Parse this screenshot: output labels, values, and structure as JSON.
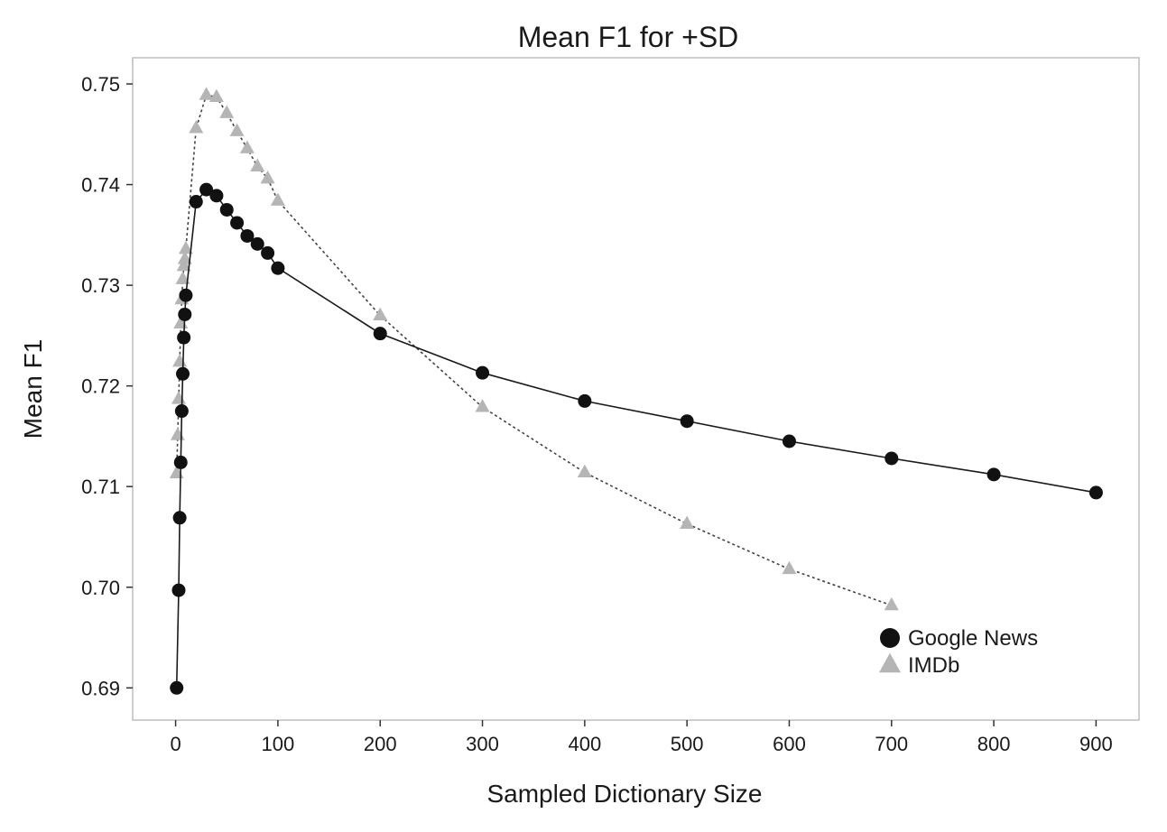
{
  "chart_data": {
    "type": "line",
    "title": "Mean F1 for +SD",
    "xlabel": "Sampled Dictionary Size",
    "ylabel": "Mean F1",
    "xlim": [
      -42,
      942
    ],
    "ylim": [
      0.6868,
      0.7526
    ],
    "x_ticks": [
      0,
      100,
      200,
      300,
      400,
      500,
      600,
      700,
      800,
      900
    ],
    "x_tick_labels": [
      "0",
      "100",
      "200",
      "300",
      "400",
      "500",
      "600",
      "700",
      "800",
      "900"
    ],
    "y_ticks": [
      0.69,
      0.7,
      0.71,
      0.72,
      0.73,
      0.74,
      0.75
    ],
    "y_tick_labels": [
      "0.69",
      "0.70",
      "0.71",
      "0.72",
      "0.73",
      "0.74",
      "0.75"
    ],
    "grid": false,
    "legend_position": "bottom-right",
    "colors": {
      "google_news": "#111111",
      "imdb": "#b5b5b5",
      "frame": "#bdbdbd"
    },
    "series": [
      {
        "name": "Google News",
        "marker": "circle",
        "line_style": "solid",
        "x": [
          1,
          3,
          4,
          5,
          6,
          7,
          8,
          9,
          10,
          20,
          30,
          40,
          50,
          60,
          70,
          80,
          90,
          100,
          200,
          300,
          400,
          500,
          600,
          700,
          800,
          900
        ],
        "y": [
          0.69,
          0.6997,
          0.7069,
          0.7124,
          0.7175,
          0.7212,
          0.7248,
          0.7271,
          0.729,
          0.7383,
          0.7395,
          0.7389,
          0.7375,
          0.7362,
          0.7349,
          0.7341,
          0.7332,
          0.7317,
          0.7252,
          0.7213,
          0.7185,
          0.7165,
          0.7145,
          0.7128,
          0.7112,
          0.7094
        ]
      },
      {
        "name": "IMDb",
        "marker": "triangle",
        "line_style": "dotted",
        "x": [
          1,
          2,
          3,
          4,
          5,
          6,
          7,
          8,
          9,
          10,
          20,
          30,
          40,
          50,
          60,
          70,
          80,
          90,
          100,
          200,
          300,
          400,
          500,
          600,
          700
        ],
        "y": [
          0.7113,
          0.7151,
          0.7187,
          0.7224,
          0.7262,
          0.7286,
          0.7306,
          0.7319,
          0.7326,
          0.7336,
          0.7456,
          0.7489,
          0.7487,
          0.7471,
          0.7453,
          0.7436,
          0.7418,
          0.7406,
          0.7384,
          0.727,
          0.7179,
          0.7114,
          0.7063,
          0.7018,
          0.6982
        ]
      }
    ]
  }
}
